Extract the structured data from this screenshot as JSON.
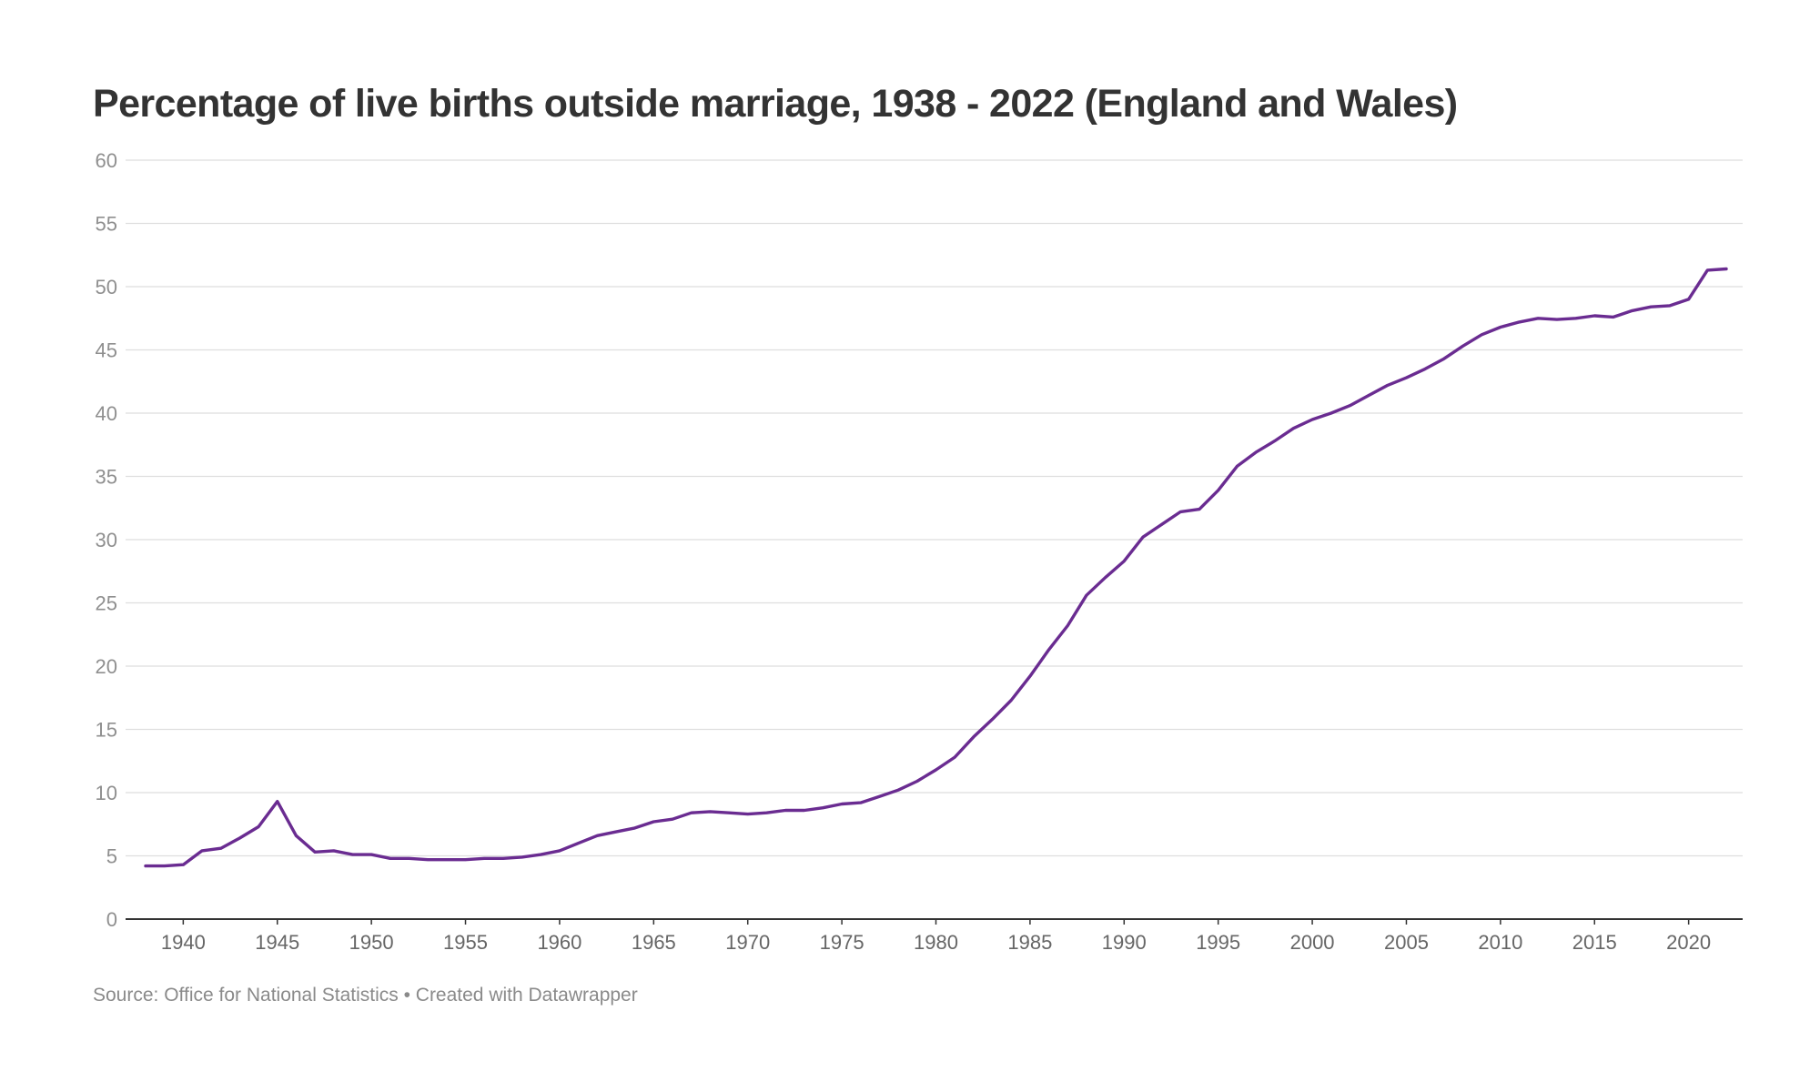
{
  "chart_data": {
    "type": "line",
    "title": "Percentage of live births outside marriage, 1938 - 2022 (England and Wales)",
    "xlabel": "",
    "ylabel": "",
    "xlim": [
      1938,
      2022
    ],
    "ylim": [
      0,
      60
    ],
    "yticks": [
      0,
      5,
      10,
      15,
      20,
      25,
      30,
      35,
      40,
      45,
      50,
      55,
      60
    ],
    "xticks": [
      1940,
      1945,
      1950,
      1955,
      1960,
      1965,
      1970,
      1975,
      1980,
      1985,
      1990,
      1995,
      2000,
      2005,
      2010,
      2015,
      2020
    ],
    "grid": true,
    "legend": "none",
    "line_color": "#6a2c91",
    "x": [
      1938,
      1939,
      1940,
      1941,
      1942,
      1943,
      1944,
      1945,
      1946,
      1947,
      1948,
      1949,
      1950,
      1951,
      1952,
      1953,
      1954,
      1955,
      1956,
      1957,
      1958,
      1959,
      1960,
      1961,
      1962,
      1963,
      1964,
      1965,
      1966,
      1967,
      1968,
      1969,
      1970,
      1971,
      1972,
      1973,
      1974,
      1975,
      1976,
      1977,
      1978,
      1979,
      1980,
      1981,
      1982,
      1983,
      1984,
      1985,
      1986,
      1987,
      1988,
      1989,
      1990,
      1991,
      1992,
      1993,
      1994,
      1995,
      1996,
      1997,
      1998,
      1999,
      2000,
      2001,
      2002,
      2003,
      2004,
      2005,
      2006,
      2007,
      2008,
      2009,
      2010,
      2011,
      2012,
      2013,
      2014,
      2015,
      2016,
      2017,
      2018,
      2019,
      2020,
      2021,
      2022
    ],
    "series": [
      {
        "values": [
          4.2,
          4.2,
          4.3,
          5.4,
          5.6,
          6.4,
          7.3,
          9.3,
          6.6,
          5.3,
          5.4,
          5.1,
          5.1,
          4.8,
          4.8,
          4.7,
          4.7,
          4.7,
          4.8,
          4.8,
          4.9,
          5.1,
          5.4,
          6.0,
          6.6,
          6.9,
          7.2,
          7.7,
          7.9,
          8.4,
          8.5,
          8.4,
          8.3,
          8.4,
          8.6,
          8.6,
          8.8,
          9.1,
          9.2,
          9.7,
          10.2,
          10.9,
          11.8,
          12.8,
          14.4,
          15.8,
          17.3,
          19.2,
          21.3,
          23.2,
          25.6,
          27.0,
          28.3,
          30.2,
          31.2,
          32.2,
          32.4,
          33.9,
          35.8,
          36.9,
          37.8,
          38.8,
          39.5,
          40.0,
          40.6,
          41.4,
          42.2,
          42.8,
          43.5,
          44.3,
          45.3,
          46.2,
          46.8,
          47.2,
          47.5,
          47.4,
          47.5,
          47.7,
          47.6,
          48.1,
          48.4,
          48.5,
          49.0,
          51.3,
          51.4
        ]
      }
    ]
  },
  "footer": {
    "source_text": "Source: Office for National Statistics • Created with Datawrapper"
  }
}
